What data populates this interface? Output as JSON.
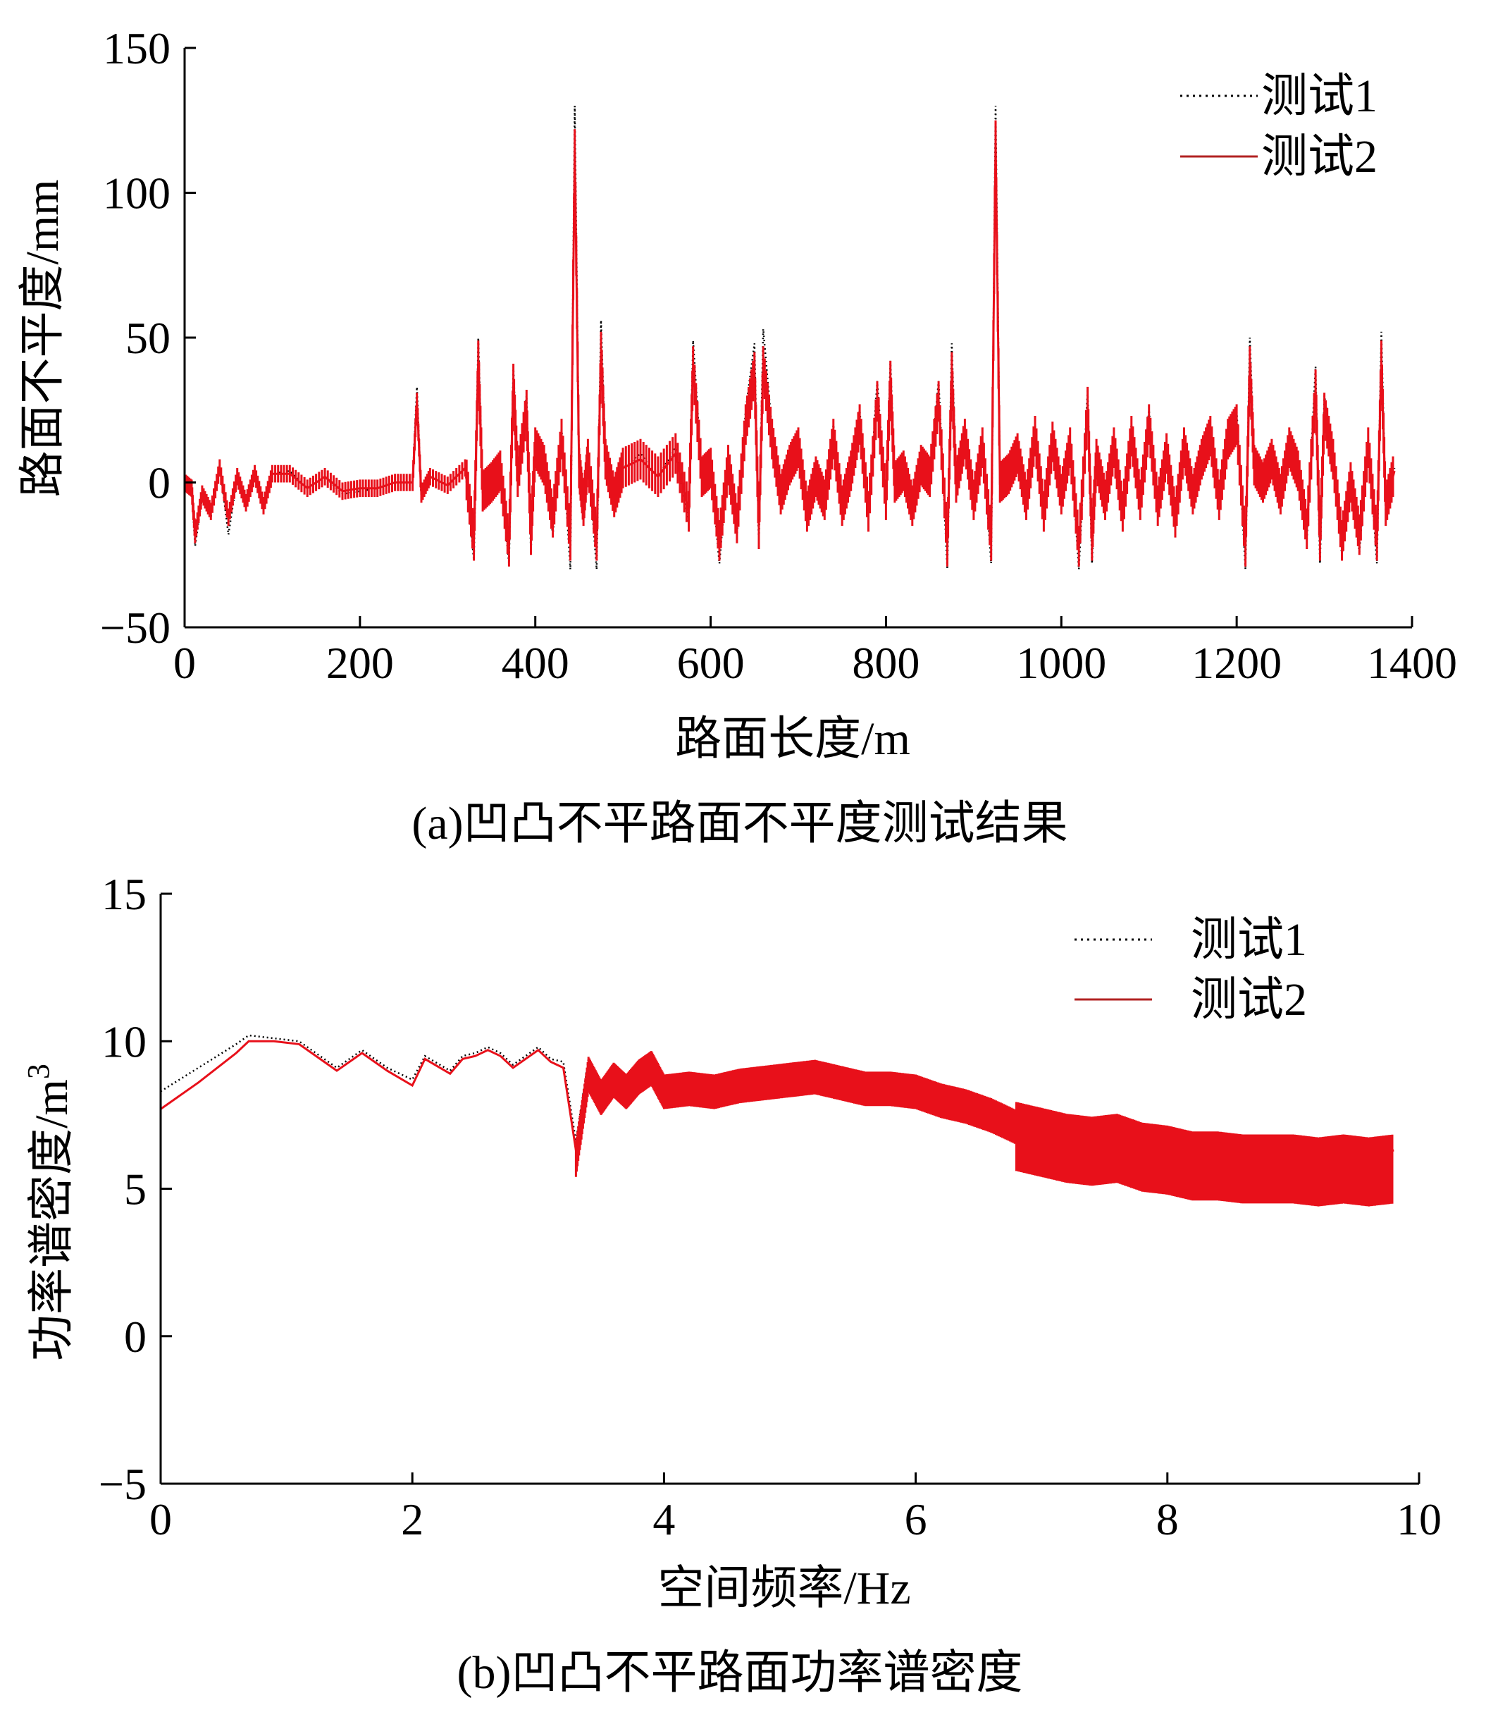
{
  "chart_data": [
    {
      "type": "line",
      "caption": "(a)凹凸不平路面不平度测试结果",
      "xlabel": "路面长度/m",
      "ylabel": "路面不平度/mm",
      "xlim": [
        0,
        1400
      ],
      "ylim": [
        -50,
        150
      ],
      "xticks": [
        "0",
        "200",
        "400",
        "600",
        "800",
        "1000",
        "1200",
        "1400"
      ],
      "yticks": [
        "150",
        "100",
        "50",
        "0",
        "−50"
      ],
      "grid": false,
      "legend_position": "top-right",
      "series": [
        {
          "name": "测试1",
          "style": "dotted",
          "color": "#000000",
          "x": [
            0,
            8,
            12,
            20,
            30,
            40,
            50,
            60,
            70,
            80,
            90,
            100,
            120,
            140,
            160,
            180,
            200,
            220,
            240,
            260,
            265,
            270,
            280,
            300,
            320,
            330,
            335,
            340,
            350,
            360,
            370,
            375,
            380,
            390,
            395,
            400,
            410,
            420,
            430,
            440,
            445,
            450,
            455,
            460,
            470,
            475,
            480,
            490,
            500,
            520,
            540,
            560,
            575,
            580,
            590,
            600,
            610,
            620,
            630,
            640,
            650,
            655,
            660,
            670,
            680,
            690,
            700,
            710,
            720,
            730,
            740,
            750,
            760,
            770,
            780,
            790,
            800,
            805,
            810,
            820,
            830,
            840,
            850,
            860,
            870,
            875,
            880,
            890,
            900,
            910,
            920,
            925,
            930,
            940,
            950,
            960,
            970,
            980,
            990,
            1000,
            1010,
            1020,
            1030,
            1035,
            1040,
            1050,
            1060,
            1070,
            1080,
            1090,
            1100,
            1110,
            1120,
            1130,
            1140,
            1150,
            1160,
            1170,
            1180,
            1190,
            1200,
            1210,
            1215,
            1220,
            1230,
            1240,
            1250,
            1260,
            1270,
            1280,
            1290,
            1295,
            1300,
            1310,
            1320,
            1330,
            1340,
            1350,
            1360,
            1365,
            1370,
            1380
          ],
          "y": [
            0,
            -2,
            -22,
            -5,
            -12,
            6,
            -18,
            2,
            -8,
            4,
            -10,
            3,
            4,
            -2,
            2,
            -4,
            -3,
            -2,
            0,
            0,
            33,
            -6,
            2,
            -1,
            5,
            -27,
            50,
            -4,
            0,
            4,
            -28,
            40,
            2,
            30,
            -24,
            15,
            8,
            -18,
            19,
            -30,
            130,
            5,
            -12,
            10,
            -30,
            56,
            8,
            -6,
            5,
            10,
            2,
            12,
            -14,
            49,
            2,
            6,
            -28,
            8,
            -18,
            25,
            48,
            -22,
            53,
            18,
            -5,
            8,
            15,
            -12,
            2,
            -8,
            20,
            -10,
            5,
            25,
            -12,
            35,
            -8,
            42,
            0,
            5,
            -10,
            8,
            2,
            35,
            -30,
            48,
            0,
            18,
            -8,
            15,
            -28,
            130,
            0,
            4,
            12,
            -8,
            20,
            -12,
            18,
            -5,
            15,
            -30,
            32,
            -28,
            10,
            -8,
            15,
            -12,
            20,
            -8,
            25,
            -10,
            12,
            -15,
            14,
            -5,
            10,
            20,
            -8,
            18,
            25,
            -30,
            50,
            8,
            0,
            10,
            -5,
            15,
            5,
            -20,
            40,
            -28,
            30,
            10,
            -25,
            0,
            -24,
            15,
            -28,
            52,
            -10,
            5
          ],
          "note": ""
        },
        {
          "name": "测试2",
          "style": "solid",
          "color": "#e8101a",
          "x": [
            0,
            8,
            12,
            20,
            30,
            40,
            50,
            60,
            70,
            80,
            90,
            100,
            120,
            140,
            160,
            180,
            200,
            220,
            240,
            260,
            265,
            270,
            280,
            300,
            320,
            330,
            335,
            340,
            350,
            360,
            370,
            375,
            380,
            390,
            395,
            400,
            410,
            420,
            430,
            440,
            445,
            450,
            455,
            460,
            470,
            475,
            480,
            490,
            500,
            520,
            540,
            560,
            575,
            580,
            590,
            600,
            610,
            620,
            630,
            640,
            650,
            655,
            660,
            670,
            680,
            690,
            700,
            710,
            720,
            730,
            740,
            750,
            760,
            770,
            780,
            790,
            800,
            805,
            810,
            820,
            830,
            840,
            850,
            860,
            870,
            875,
            880,
            890,
            900,
            910,
            920,
            925,
            930,
            940,
            950,
            960,
            970,
            980,
            990,
            1000,
            1010,
            1020,
            1030,
            1035,
            1040,
            1050,
            1060,
            1070,
            1080,
            1090,
            1100,
            1110,
            1120,
            1130,
            1140,
            1150,
            1160,
            1170,
            1180,
            1190,
            1200,
            1210,
            1215,
            1220,
            1230,
            1240,
            1250,
            1260,
            1270,
            1280,
            1290,
            1295,
            1300,
            1310,
            1320,
            1330,
            1340,
            1350,
            1360,
            1365,
            1370,
            1380
          ],
          "y": [
            0,
            -2,
            -18,
            -4,
            -10,
            5,
            -12,
            2,
            -7,
            3,
            -8,
            3,
            3,
            -2,
            2,
            -3,
            -2,
            -2,
            0,
            0,
            28,
            -4,
            2,
            -1,
            5,
            -20,
            42,
            -3,
            0,
            4,
            -22,
            34,
            2,
            25,
            -18,
            12,
            6,
            -12,
            15,
            -20,
            115,
            5,
            -8,
            8,
            -20,
            45,
            8,
            -5,
            5,
            8,
            2,
            10,
            -10,
            40,
            2,
            5,
            -20,
            6,
            -14,
            20,
            38,
            -16,
            40,
            15,
            -4,
            6,
            12,
            -10,
            2,
            -6,
            15,
            -8,
            4,
            20,
            -10,
            28,
            -6,
            35,
            0,
            4,
            -8,
            6,
            2,
            28,
            -22,
            38,
            0,
            15,
            -6,
            12,
            -20,
            118,
            0,
            3,
            10,
            -6,
            16,
            -10,
            14,
            -4,
            12,
            -22,
            26,
            -20,
            8,
            -6,
            12,
            -10,
            16,
            -6,
            20,
            -8,
            10,
            -12,
            12,
            -4,
            8,
            16,
            -6,
            15,
            20,
            -22,
            40,
            6,
            0,
            8,
            -4,
            12,
            4,
            -16,
            32,
            -20,
            24,
            8,
            -20,
            0,
            -18,
            12,
            -20,
            42,
            -8,
            4
          ],
          "note": ""
        }
      ],
      "legend": [
        "测试1",
        "测试2"
      ]
    },
    {
      "type": "line",
      "caption": "(b)凹凸不平路面功率谱密度",
      "xlabel": "空间频率/Hz",
      "ylabel": "功率谱密度/m",
      "ylabel_sup": "3",
      "xlim": [
        0,
        10
      ],
      "ylim": [
        -5,
        15
      ],
      "xticks": [
        "0",
        "2",
        "4",
        "6",
        "8",
        "10"
      ],
      "yticks": [
        "15",
        "10",
        "5",
        "0",
        "−5"
      ],
      "grid": false,
      "legend_position": "top-right",
      "series": [
        {
          "name": "测试1",
          "style": "dotted",
          "color": "#000000",
          "x": [
            0,
            0.3,
            0.6,
            0.7,
            0.9,
            1.1,
            1.3,
            1.4,
            1.6,
            1.8,
            2.0,
            2.1,
            2.3,
            2.4,
            2.5,
            2.6,
            2.7,
            2.8,
            2.9,
            3.0,
            3.1,
            3.2,
            3.3,
            3.4,
            3.5,
            3.6,
            3.7,
            3.8,
            3.9,
            4.0,
            4.2,
            4.4,
            4.6,
            4.8,
            5.0,
            5.2,
            5.4,
            5.6,
            5.8,
            6.0,
            6.2,
            6.4,
            6.6,
            6.8,
            7.0,
            7.2,
            7.4,
            7.6,
            7.8,
            8.0,
            8.2,
            8.4,
            8.6,
            8.8,
            9.0,
            9.2,
            9.4,
            9.6,
            9.8
          ],
          "y": [
            8.3,
            9.1,
            9.9,
            10.2,
            10.1,
            10.0,
            9.4,
            9.1,
            9.7,
            9.1,
            8.7,
            9.5,
            9.0,
            9.5,
            9.6,
            9.8,
            9.6,
            9.2,
            9.5,
            9.8,
            9.4,
            9.3,
            6.6,
            9.4,
            8.6,
            9.2,
            8.8,
            9.3,
            9.6,
            8.8,
            8.9,
            8.8,
            9.0,
            9.1,
            9.2,
            9.3,
            9.1,
            8.9,
            8.9,
            8.8,
            8.5,
            8.3,
            8.0,
            7.6,
            7.4,
            7.2,
            7.1,
            7.2,
            6.9,
            6.8,
            6.6,
            6.6,
            6.5,
            6.5,
            6.5,
            6.4,
            6.5,
            6.4,
            6.5
          ],
          "note": ""
        },
        {
          "name": "测试2",
          "style": "solid",
          "color": "#e8101a",
          "x": [
            0,
            0.3,
            0.6,
            0.7,
            0.9,
            1.1,
            1.3,
            1.4,
            1.6,
            1.8,
            2.0,
            2.1,
            2.3,
            2.4,
            2.5,
            2.6,
            2.7,
            2.8,
            2.9,
            3.0,
            3.1,
            3.2,
            3.3,
            3.4,
            3.5,
            3.6,
            3.7,
            3.8,
            3.9,
            4.0,
            4.2,
            4.4,
            4.6,
            4.8,
            5.0,
            5.2,
            5.4,
            5.6,
            5.8,
            6.0,
            6.2,
            6.4,
            6.6,
            6.8,
            7.0,
            7.2,
            7.4,
            7.6,
            7.8,
            8.0,
            8.2,
            8.4,
            8.6,
            8.8,
            9.0,
            9.2,
            9.4,
            9.6,
            9.8
          ],
          "y": [
            7.7,
            8.6,
            9.6,
            10.0,
            10.0,
            9.9,
            9.3,
            9.0,
            9.6,
            9.0,
            8.5,
            9.4,
            8.9,
            9.4,
            9.5,
            9.7,
            9.5,
            9.1,
            9.4,
            9.7,
            9.3,
            9.1,
            6.3,
            9.2,
            8.4,
            9.0,
            8.6,
            9.1,
            9.4,
            8.6,
            8.7,
            8.6,
            8.8,
            8.9,
            9.0,
            9.1,
            8.9,
            8.7,
            8.7,
            8.6,
            8.3,
            8.1,
            7.8,
            7.4,
            7.2,
            7.0,
            6.9,
            7.0,
            6.7,
            6.6,
            6.4,
            6.4,
            6.3,
            6.3,
            6.3,
            6.2,
            6.3,
            6.2,
            6.3
          ],
          "note": ""
        }
      ],
      "legend": [
        "测试1",
        "测试2"
      ]
    }
  ]
}
